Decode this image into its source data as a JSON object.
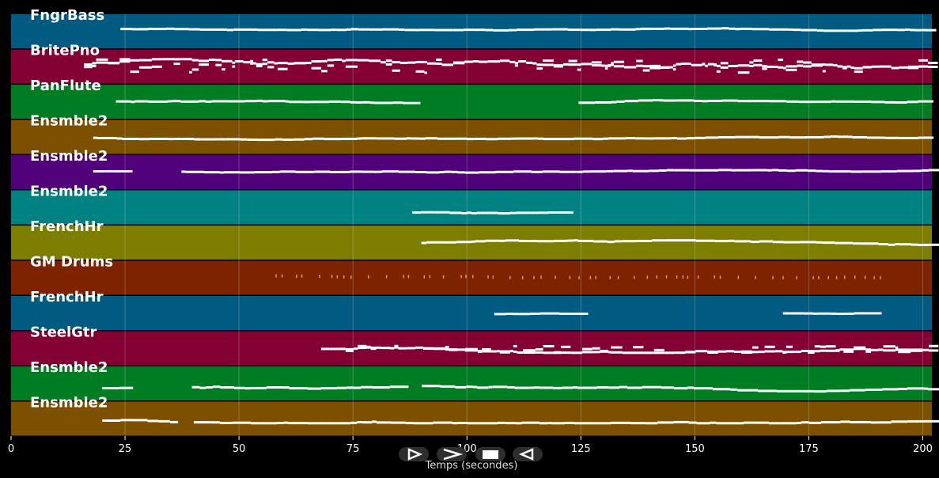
{
  "chart_data": {
    "type": "piano-roll",
    "xlabel": "Temps (secondes)",
    "ylabel": "",
    "xlim": [
      0,
      202
    ],
    "x_ticks": [
      0,
      25,
      50,
      75,
      100,
      125,
      150,
      175,
      200
    ],
    "grid": true,
    "tracks": [
      {
        "name": "FngrBass",
        "color": "#005a82",
        "note_color": "#ffffff",
        "start": 24,
        "end": 202,
        "gaps": [],
        "density": "medium",
        "pitch_range": [
          0.55,
          0.65
        ]
      },
      {
        "name": "BritePno",
        "color": "#820032",
        "note_color": "#ffffff",
        "start": 16,
        "end": 202,
        "gaps": [],
        "density": "dense",
        "pitch_range": [
          0.35,
          0.75
        ]
      },
      {
        "name": "PanFlute",
        "color": "#007d23",
        "note_color": "#ffffff",
        "start": 23,
        "end": 200,
        "gaps": [
          [
            88,
            123
          ]
        ],
        "density": "medium",
        "pitch_range": [
          0.45,
          0.6
        ]
      },
      {
        "name": "Ensmble2",
        "color": "#7d5000",
        "note_color": "#ffffff",
        "start": 18,
        "end": 202,
        "gaps": [],
        "density": "medium",
        "pitch_range": [
          0.45,
          0.55
        ]
      },
      {
        "name": "Ensmble2",
        "color": "#500078",
        "note_color": "#ffffff",
        "start": 18,
        "end": 202,
        "gaps": [
          [
            24,
            35
          ]
        ],
        "density": "medium",
        "pitch_range": [
          0.5,
          0.6
        ]
      },
      {
        "name": "Ensmble2",
        "color": "#008282",
        "note_color": "#ffffff",
        "start": 88,
        "end": 123,
        "gaps": [],
        "density": "medium",
        "pitch_range": [
          0.3,
          0.45
        ]
      },
      {
        "name": "FrenchHr",
        "color": "#7d7d00",
        "note_color": "#ffffff",
        "start": 90,
        "end": 202,
        "gaps": [],
        "density": "medium",
        "pitch_range": [
          0.45,
          0.6
        ]
      },
      {
        "name": "GM Drums",
        "color": "#7d2300",
        "note_color": "#e6a050",
        "start": 58,
        "end": 192,
        "gaps": [],
        "density": "sparse",
        "pitch_range": [
          0.55,
          0.65
        ]
      },
      {
        "name": "FrenchHr",
        "color": "#005a82",
        "note_color": "#ffffff",
        "start": 106,
        "end": 188,
        "gaps": [
          [
            123,
            168
          ]
        ],
        "density": "medium",
        "pitch_range": [
          0.45,
          0.55
        ]
      },
      {
        "name": "SteelGtr",
        "color": "#820032",
        "note_color": "#ffffff",
        "start": 68,
        "end": 202,
        "gaps": [],
        "density": "dense",
        "pitch_range": [
          0.4,
          0.6
        ]
      },
      {
        "name": "Ensmble2",
        "color": "#007d23",
        "note_color": "#ffffff",
        "start": 20,
        "end": 202,
        "gaps": [
          [
            24,
            39
          ],
          [
            86,
            90
          ]
        ],
        "density": "medium",
        "pitch_range": [
          0.3,
          0.5
        ]
      },
      {
        "name": "Ensmble2",
        "color": "#7d5000",
        "note_color": "#ffffff",
        "start": 20,
        "end": 202,
        "gaps": [
          [
            35,
            39
          ]
        ],
        "density": "medium",
        "pitch_range": [
          0.4,
          0.6
        ]
      }
    ]
  },
  "controls": {
    "play_icon": "play-icon",
    "forward_icon": "fast-forward-icon",
    "stop_icon": "stop-icon",
    "back_icon": "rewind-icon"
  }
}
